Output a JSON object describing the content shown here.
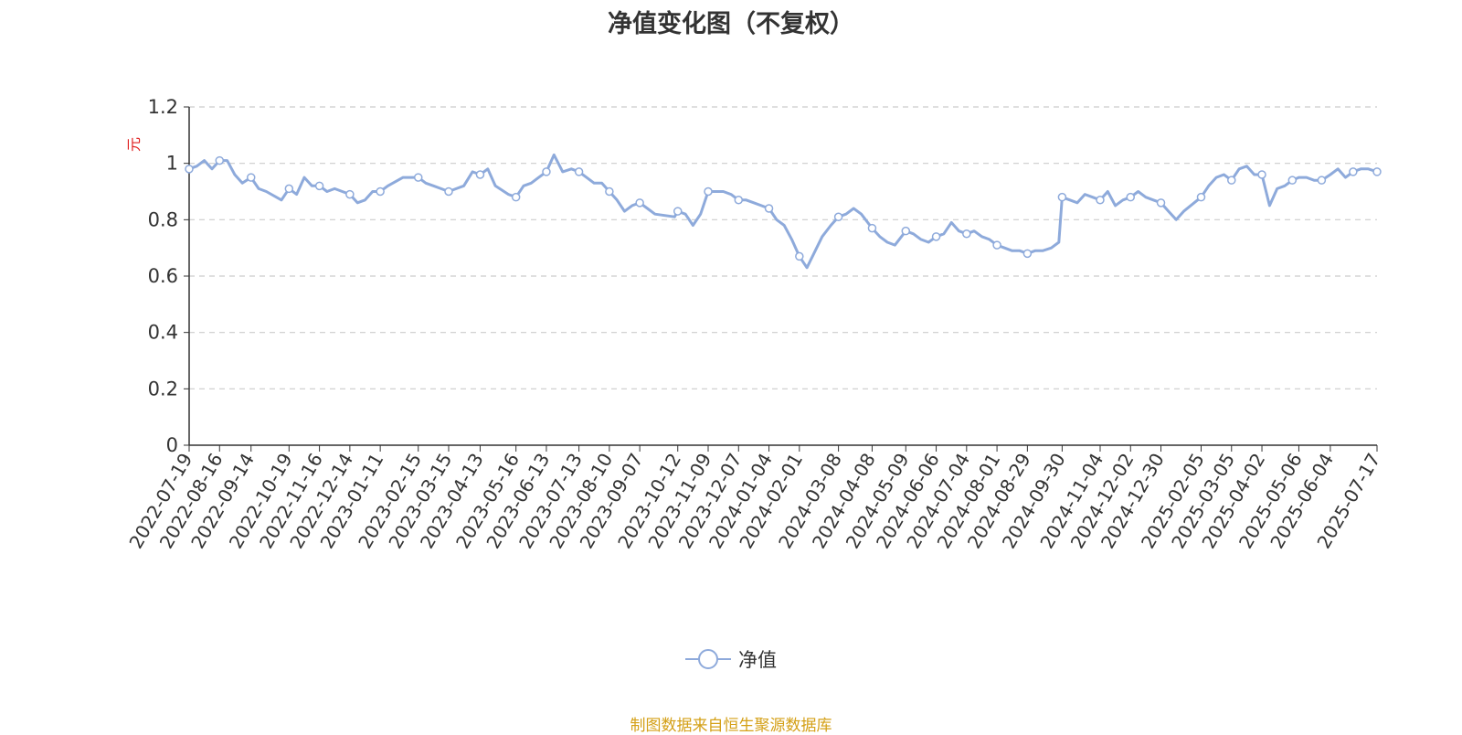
{
  "chart_data": {
    "type": "line",
    "title": "净值变化图（不复权）",
    "ylabel": "元",
    "ylim": [
      0,
      1.2
    ],
    "yticks": [
      "0",
      "0.2",
      "0.4",
      "0.6",
      "0.8",
      "1",
      "1.2"
    ],
    "grid": true,
    "legend_position": "bottom",
    "x_tick_labels": [
      "2022-07-19",
      "2022-08-16",
      "2022-09-14",
      "2022-10-19",
      "2022-11-16",
      "2022-12-14",
      "2023-01-11",
      "2023-02-15",
      "2023-03-15",
      "2023-04-13",
      "2023-05-16",
      "2023-06-13",
      "2023-07-13",
      "2023-08-10",
      "2023-09-07",
      "2023-10-12",
      "2023-11-09",
      "2023-12-07",
      "2024-01-04",
      "2024-02-01",
      "2024-03-08",
      "2024-04-08",
      "2024-05-09",
      "2024-06-06",
      "2024-07-04",
      "2024-08-01",
      "2024-08-29",
      "2024-09-30",
      "2024-11-04",
      "2024-12-02",
      "2024-12-30",
      "2025-02-05",
      "2025-03-05",
      "2025-04-02",
      "2025-05-06",
      "2025-06-04",
      "2025-07-17"
    ],
    "series": [
      {
        "name": "净值",
        "color": "#8eaadb",
        "x": [
          "2022-07-19",
          "2022-07-26",
          "2022-08-02",
          "2022-08-09",
          "2022-08-16",
          "2022-08-23",
          "2022-08-30",
          "2022-09-06",
          "2022-09-14",
          "2022-09-21",
          "2022-09-28",
          "2022-10-12",
          "2022-10-19",
          "2022-10-26",
          "2022-11-02",
          "2022-11-09",
          "2022-11-16",
          "2022-11-23",
          "2022-11-30",
          "2022-12-07",
          "2022-12-14",
          "2022-12-21",
          "2022-12-28",
          "2023-01-04",
          "2023-01-11",
          "2023-01-18",
          "2023-02-01",
          "2023-02-08",
          "2023-02-15",
          "2023-02-22",
          "2023-03-01",
          "2023-03-08",
          "2023-03-15",
          "2023-03-22",
          "2023-03-29",
          "2023-04-06",
          "2023-04-13",
          "2023-04-20",
          "2023-04-27",
          "2023-05-09",
          "2023-05-16",
          "2023-05-23",
          "2023-05-30",
          "2023-06-06",
          "2023-06-13",
          "2023-06-20",
          "2023-06-28",
          "2023-07-06",
          "2023-07-13",
          "2023-07-20",
          "2023-07-27",
          "2023-08-03",
          "2023-08-10",
          "2023-08-17",
          "2023-08-24",
          "2023-08-31",
          "2023-09-07",
          "2023-09-14",
          "2023-09-21",
          "2023-10-09",
          "2023-10-12",
          "2023-10-19",
          "2023-10-26",
          "2023-11-02",
          "2023-11-09",
          "2023-11-16",
          "2023-11-23",
          "2023-11-30",
          "2023-12-07",
          "2023-12-14",
          "2023-12-21",
          "2023-12-28",
          "2024-01-04",
          "2024-01-11",
          "2024-01-18",
          "2024-01-25",
          "2024-02-01",
          "2024-02-08",
          "2024-02-22",
          "2024-03-01",
          "2024-03-08",
          "2024-03-15",
          "2024-03-22",
          "2024-03-29",
          "2024-04-08",
          "2024-04-15",
          "2024-04-22",
          "2024-04-29",
          "2024-05-09",
          "2024-05-16",
          "2024-05-23",
          "2024-05-30",
          "2024-06-06",
          "2024-06-13",
          "2024-06-20",
          "2024-06-27",
          "2024-07-04",
          "2024-07-11",
          "2024-07-18",
          "2024-07-25",
          "2024-08-01",
          "2024-08-08",
          "2024-08-15",
          "2024-08-22",
          "2024-08-29",
          "2024-09-05",
          "2024-09-12",
          "2024-09-20",
          "2024-09-27",
          "2024-09-30",
          "2024-10-14",
          "2024-10-21",
          "2024-10-28",
          "2024-11-04",
          "2024-11-11",
          "2024-11-18",
          "2024-11-25",
          "2024-12-02",
          "2024-12-09",
          "2024-12-16",
          "2024-12-23",
          "2024-12-30",
          "2025-01-06",
          "2025-01-13",
          "2025-01-20",
          "2025-02-05",
          "2025-02-12",
          "2025-02-19",
          "2025-02-26",
          "2025-03-05",
          "2025-03-12",
          "2025-03-19",
          "2025-03-26",
          "2025-04-02",
          "2025-04-09",
          "2025-04-16",
          "2025-04-23",
          "2025-04-30",
          "2025-05-06",
          "2025-05-13",
          "2025-05-20",
          "2025-05-27",
          "2025-06-04",
          "2025-06-11",
          "2025-06-18",
          "2025-06-25",
          "2025-07-02",
          "2025-07-09",
          "2025-07-17"
        ],
        "values": [
          0.98,
          0.99,
          1.01,
          0.98,
          1.01,
          1.01,
          0.96,
          0.93,
          0.95,
          0.91,
          0.9,
          0.87,
          0.91,
          0.89,
          0.95,
          0.92,
          0.92,
          0.9,
          0.91,
          0.9,
          0.89,
          0.86,
          0.87,
          0.9,
          0.9,
          0.92,
          0.95,
          0.95,
          0.95,
          0.93,
          0.92,
          0.91,
          0.9,
          0.91,
          0.92,
          0.97,
          0.96,
          0.98,
          0.92,
          0.89,
          0.88,
          0.92,
          0.93,
          0.95,
          0.97,
          1.03,
          0.97,
          0.98,
          0.97,
          0.95,
          0.93,
          0.93,
          0.9,
          0.87,
          0.83,
          0.85,
          0.86,
          0.84,
          0.82,
          0.81,
          0.83,
          0.82,
          0.78,
          0.82,
          0.9,
          0.9,
          0.9,
          0.89,
          0.87,
          0.87,
          0.86,
          0.85,
          0.84,
          0.8,
          0.78,
          0.73,
          0.67,
          0.63,
          0.74,
          0.78,
          0.81,
          0.82,
          0.84,
          0.82,
          0.77,
          0.74,
          0.72,
          0.71,
          0.76,
          0.75,
          0.73,
          0.72,
          0.74,
          0.75,
          0.79,
          0.76,
          0.75,
          0.76,
          0.74,
          0.73,
          0.71,
          0.7,
          0.69,
          0.69,
          0.68,
          0.69,
          0.69,
          0.7,
          0.72,
          0.88,
          0.86,
          0.89,
          0.88,
          0.87,
          0.9,
          0.85,
          0.87,
          0.88,
          0.9,
          0.88,
          0.87,
          0.86,
          0.83,
          0.8,
          0.83,
          0.88,
          0.92,
          0.95,
          0.96,
          0.94,
          0.98,
          0.99,
          0.96,
          0.96,
          0.85,
          0.91,
          0.92,
          0.94,
          0.95,
          0.95,
          0.94,
          0.94,
          0.96,
          0.98,
          0.95,
          0.97,
          0.98,
          0.98,
          0.97
        ],
        "marker_indices": [
          0,
          4,
          8,
          12,
          16,
          20,
          24,
          28,
          32,
          36,
          40,
          44,
          48,
          52,
          56,
          60,
          64,
          68,
          72,
          76,
          80,
          84,
          88,
          92,
          96,
          100,
          104,
          109,
          113,
          117,
          121,
          125,
          129,
          133,
          137,
          141,
          145,
          148
        ]
      }
    ]
  },
  "legend": {
    "label": "净值"
  },
  "footer": {
    "source": "制图数据来自恒生聚源数据库"
  }
}
